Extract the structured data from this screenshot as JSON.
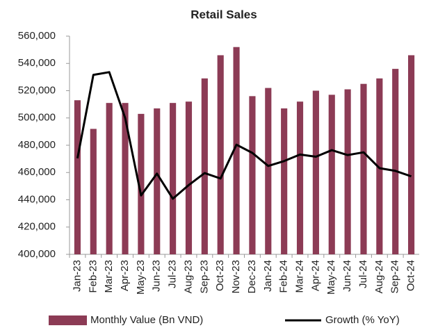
{
  "chart_data": {
    "type": "bar_line",
    "title": "Retail Sales",
    "categories": [
      "Jan-23",
      "Feb-23",
      "Mar-23",
      "Apr-23",
      "May-23",
      "Jun-23",
      "Jul-23",
      "Aug-23",
      "Sep-23",
      "Oct-23",
      "Nov-23",
      "Dec-23",
      "Jan-24",
      "Feb-24",
      "Mar-24",
      "Apr-24",
      "May-24",
      "Jun-24",
      "Jul-24",
      "Aug-24",
      "Sep-24",
      "Oct-24"
    ],
    "series": [
      {
        "name": "Monthly Value (Bn VND)",
        "type": "bar",
        "color": "#8c3b55",
        "values": [
          513000,
          492000,
          511000,
          511000,
          503000,
          507000,
          511000,
          512000,
          529000,
          546000,
          552000,
          516000,
          522000,
          507000,
          512000,
          520000,
          517000,
          521000,
          525000,
          529000,
          536000,
          546000
        ]
      },
      {
        "name": "Growth (% YoY)",
        "type": "line",
        "color": "#000000",
        "axis": "y2",
        "values": [
          17.6,
          32.9,
          33.4,
          25.0,
          10.8,
          14.8,
          10.2,
          12.7,
          14.9,
          13.9,
          20.1,
          18.6,
          16.2,
          17.1,
          18.3,
          17.9,
          19.1,
          18.2,
          18.7,
          15.8,
          15.3,
          14.3
        ]
      }
    ],
    "ylim": [
      400000,
      560000
    ],
    "yticks": [
      {
        "value": 400000,
        "label": "400,000"
      },
      {
        "value": 420000,
        "label": "420,000"
      },
      {
        "value": 440000,
        "label": "440,000"
      },
      {
        "value": 460000,
        "label": "460,000"
      },
      {
        "value": 480000,
        "label": "480,000"
      },
      {
        "value": 500000,
        "label": "500,000"
      },
      {
        "value": 520000,
        "label": "520,000"
      },
      {
        "value": 540000,
        "label": "540,000"
      },
      {
        "value": 560000,
        "label": "560,000"
      }
    ],
    "y2lim": [
      0,
      40
    ],
    "legend": "bottom"
  }
}
